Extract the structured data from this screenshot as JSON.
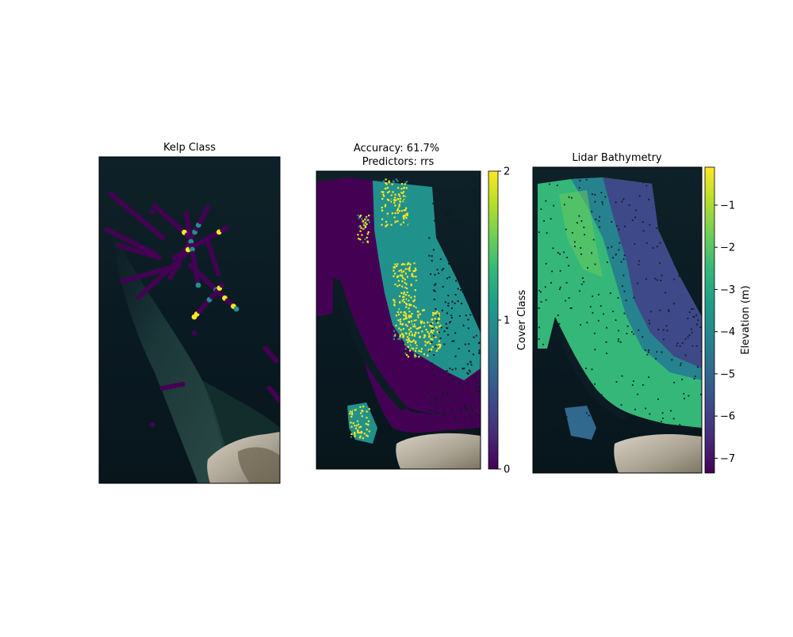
{
  "figure": {
    "panels": [
      {
        "title": "Kelp Class"
      },
      {
        "title_line1": "Accuracy: 61.7%",
        "title_line2": "Predictors: rrs"
      },
      {
        "title": "Lidar Bathymetry"
      }
    ]
  },
  "colors": {
    "viridis": [
      "#440154",
      "#482878",
      "#3e4989",
      "#31688e",
      "#26828e",
      "#1f9e89",
      "#35b779",
      "#6ece58",
      "#b5de2b",
      "#fde725"
    ],
    "class_0": "#440154",
    "class_1": "#21918c",
    "class_2": "#fde725",
    "water": "#0a1a22",
    "land": "#b9b3a6"
  },
  "chart_data": [
    {
      "type": "scatter",
      "title": "Kelp Class",
      "xlabel": "",
      "ylabel": "",
      "color_classes": [
        0,
        1,
        2
      ],
      "color_range": [
        0,
        2
      ],
      "axes_ticks": false,
      "background": "satellite image"
    },
    {
      "type": "heatmap",
      "title": "Accuracy: 61.7%\nPredictors: rrs",
      "accuracy_percent": 61.7,
      "predictors": "rrs",
      "colorbar": {
        "label": "Cover Class",
        "range": [
          0,
          2
        ],
        "ticks": [
          0,
          1,
          2
        ],
        "tick_labels": [
          "0",
          "1",
          "2"
        ]
      },
      "axes_ticks": false
    },
    {
      "type": "heatmap",
      "title": "Lidar Bathymetry",
      "colorbar": {
        "label": "Elevation (m)",
        "range": [
          -7.35,
          -0.1
        ],
        "ticks": [
          -1,
          -2,
          -3,
          -4,
          -5,
          -6,
          -7
        ],
        "tick_labels": [
          "−1",
          "−2",
          "−3",
          "−4",
          "−5",
          "−6",
          "−7"
        ]
      },
      "axes_ticks": false
    }
  ]
}
